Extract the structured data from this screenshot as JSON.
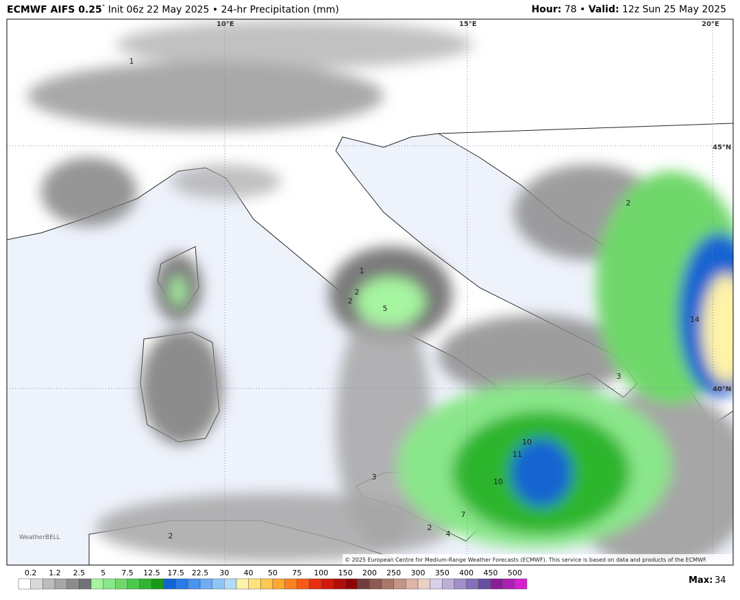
{
  "header": {
    "model": "ECMWF AIFS 0.25",
    "degree": "°",
    "init": "Init 06z 22 May 2025",
    "separator": "•",
    "product": "24-hr Precipitation (mm)",
    "hour_label": "Hour:",
    "hour": "78",
    "valid_label": "Valid:",
    "valid": "12z Sun 25 May 2025"
  },
  "map": {
    "lon_labels": [
      "10°E",
      "15°E",
      "20°E"
    ],
    "lat_labels": [
      "45°N",
      "40°N"
    ],
    "contour_labels": [
      "1",
      "2",
      "2",
      "5",
      "10",
      "11",
      "10",
      "14",
      "3",
      "3",
      "2",
      "4",
      "7",
      "2",
      "2",
      "1"
    ],
    "logo": "WeatherBELL",
    "copyright": "© 2025 European Centre for Medium-Range Weather Forecasts (ECMWF). This service is based on data and products of the ECMWF."
  },
  "colorbar": {
    "labels": [
      0.2,
      1.2,
      2.5,
      5,
      7.5,
      12.5,
      17.5,
      22.5,
      30,
      40,
      50,
      75,
      100,
      150,
      200,
      250,
      300,
      350,
      400,
      450,
      500
    ],
    "colors": [
      "#ffffff",
      "#d9d9d9",
      "#bdbdbd",
      "#a6a6a6",
      "#8c8c8c",
      "#737373",
      "#a6f5a0",
      "#8ae68a",
      "#6fd86a",
      "#4cc94c",
      "#2fb52f",
      "#1a9a1a",
      "#1464d2",
      "#2a7ae6",
      "#4a93f0",
      "#6cadf5",
      "#8ec6f8",
      "#b0dcfa",
      "#fff3a8",
      "#ffe280",
      "#ffc850",
      "#ffa830",
      "#ff8020",
      "#f85a14",
      "#e83010",
      "#d01a0a",
      "#b00c08",
      "#8c0606",
      "#6e3e3e",
      "#8c5a50",
      "#a87868",
      "#c49484",
      "#dcb4a8",
      "#ecd0c6",
      "#d8d0e8",
      "#bcb0d8",
      "#a090c8",
      "#8470b8",
      "#6850a0",
      "#8a1e9a",
      "#b01eb4",
      "#d820d0"
    ]
  },
  "max": {
    "label": "Max:",
    "value": "34"
  }
}
